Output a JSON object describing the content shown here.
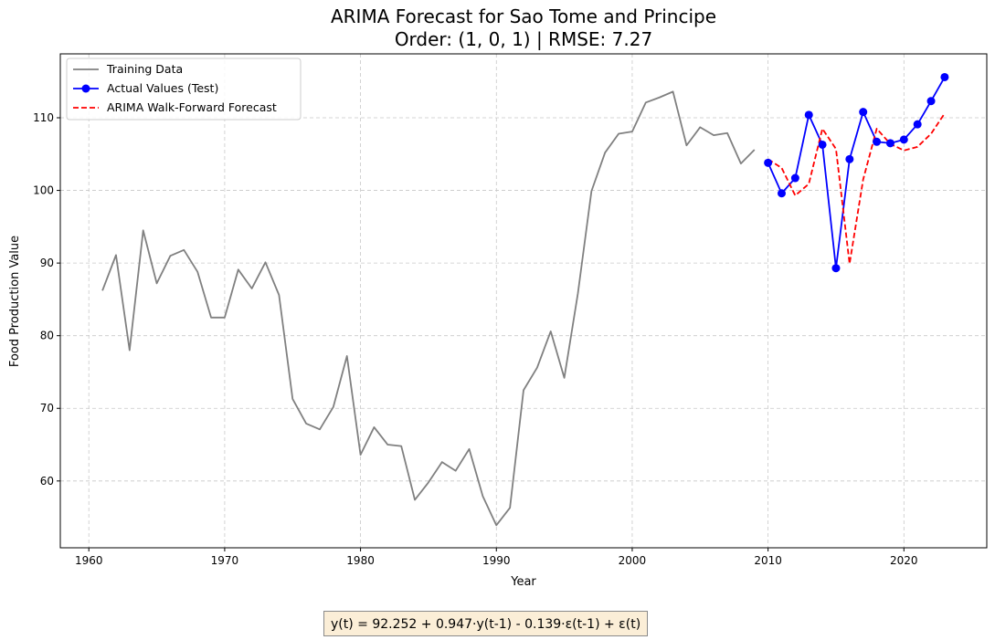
{
  "chart_data": {
    "type": "line",
    "title": "ARIMA Forecast for Sao Tome and Principe",
    "subtitle": "Order: (1, 0, 1) | RMSE: 7.27",
    "xlabel": "Year",
    "ylabel": "Food Production Value",
    "xlim": [
      1957.9,
      2026.1
    ],
    "ylim": [
      50.8,
      118.8
    ],
    "xticks": [
      1960,
      1970,
      1980,
      1990,
      2000,
      2010,
      2020
    ],
    "yticks": [
      60,
      70,
      80,
      90,
      100,
      110
    ],
    "grid": true,
    "legend_position": "top-left",
    "series": [
      {
        "name": "Training Data",
        "color": "#808080",
        "style": "solid",
        "marker": "none",
        "x": [
          1961,
          1962,
          1963,
          1964,
          1965,
          1966,
          1967,
          1968,
          1969,
          1970,
          1971,
          1972,
          1973,
          1974,
          1975,
          1976,
          1977,
          1978,
          1979,
          1980,
          1981,
          1982,
          1983,
          1984,
          1985,
          1986,
          1987,
          1988,
          1989,
          1990,
          1991,
          1992,
          1993,
          1994,
          1995,
          1996,
          1997,
          1998,
          1999,
          2000,
          2001,
          2002,
          2003,
          2004,
          2005,
          2006,
          2007,
          2008,
          2009
        ],
        "y": [
          86.2,
          91.1,
          78.0,
          94.5,
          87.2,
          91.0,
          91.8,
          88.8,
          82.5,
          82.5,
          89.1,
          86.5,
          90.1,
          85.6,
          71.3,
          67.9,
          67.1,
          70.2,
          77.2,
          63.6,
          67.4,
          65.0,
          64.8,
          57.4,
          59.8,
          62.6,
          61.4,
          64.4,
          57.9,
          53.9,
          56.3,
          72.5,
          75.6,
          80.6,
          74.2,
          85.8,
          99.9,
          105.2,
          107.8,
          108.1,
          112.1,
          112.8,
          113.6,
          106.2,
          108.7,
          107.6,
          107.9,
          103.7,
          105.6
        ]
      },
      {
        "name": "Actual Values (Test)",
        "color": "#0000ff",
        "style": "solid",
        "marker": "circle",
        "x": [
          2010,
          2011,
          2012,
          2013,
          2014,
          2015,
          2016,
          2017,
          2018,
          2019,
          2020,
          2021,
          2022,
          2023
        ],
        "y": [
          103.8,
          99.6,
          101.7,
          110.4,
          106.3,
          89.3,
          104.3,
          110.8,
          106.7,
          106.5,
          107.0,
          109.1,
          112.3,
          115.6
        ]
      },
      {
        "name": "ARIMA Walk-Forward Forecast",
        "color": "#ff0000",
        "style": "dashed",
        "marker": "none",
        "x": [
          2010,
          2011,
          2012,
          2013,
          2014,
          2015,
          2016,
          2017,
          2018,
          2019,
          2020,
          2021,
          2022,
          2023
        ],
        "y": [
          104.3,
          103.1,
          99.3,
          100.9,
          108.5,
          105.7,
          89.9,
          101.5,
          108.5,
          106.4,
          105.5,
          106.0,
          107.8,
          110.6
        ]
      }
    ]
  },
  "formula": "y(t) = 92.252 + 0.947·y(t-1) - 0.139·ε(t-1) + ε(t)"
}
